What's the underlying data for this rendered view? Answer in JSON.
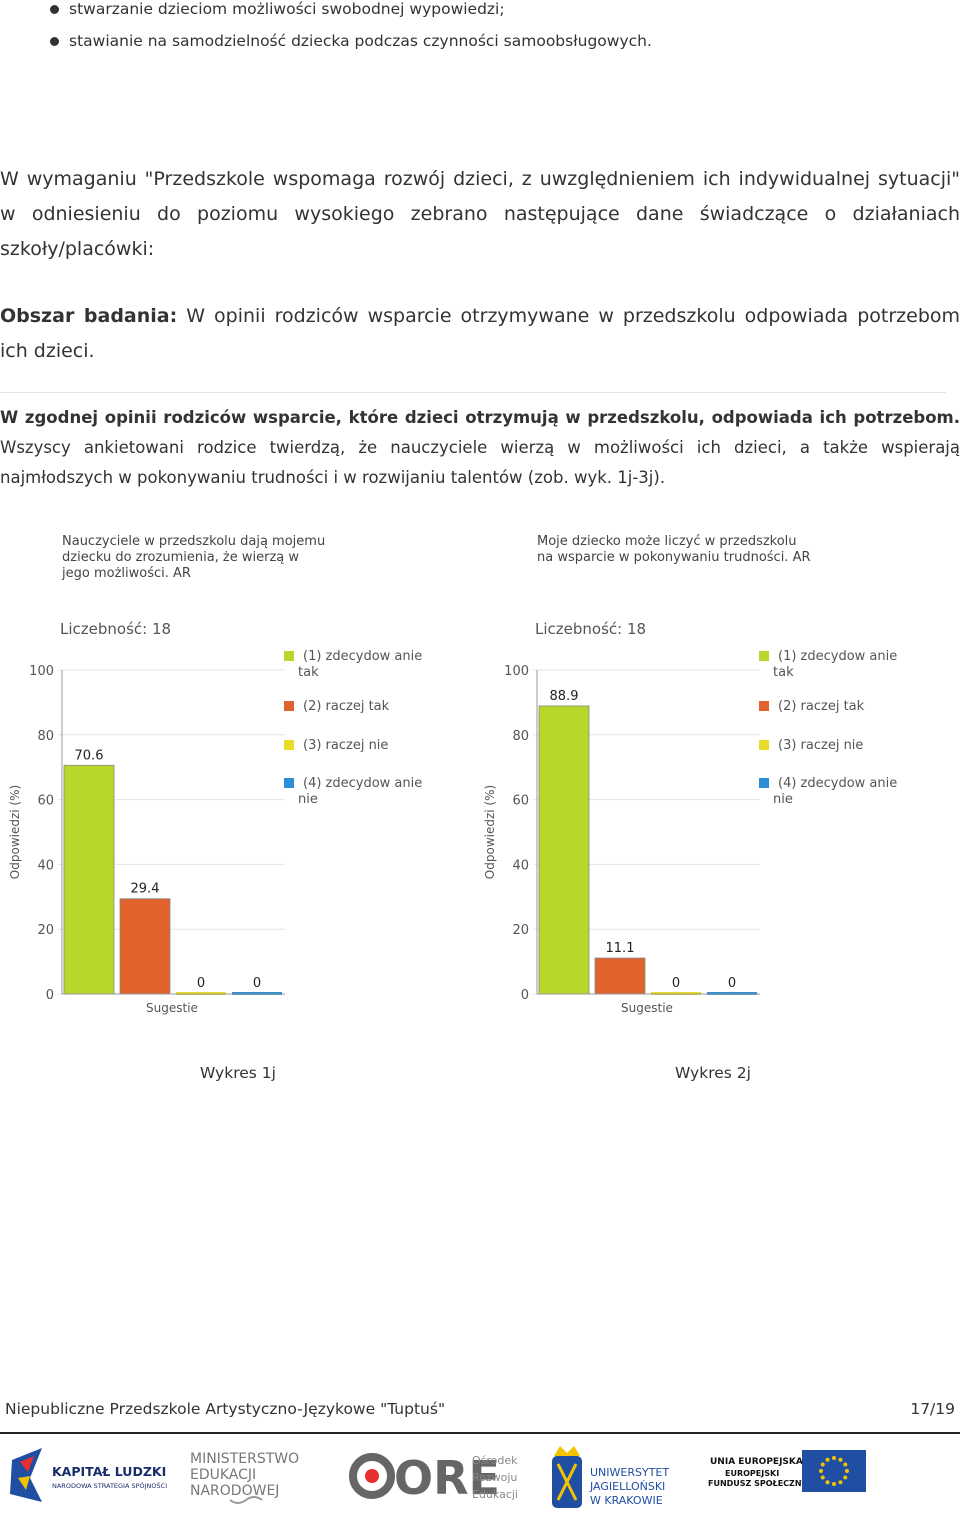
{
  "bullets": [
    "stwarzanie dzieciom możliwości swobodnej wypowiedzi;",
    "stawianie na samodzielność dziecka podczas czynności samoobsługowych."
  ],
  "intro_paragraph": "W wymaganiu \"Przedszkole wspomaga rozwój dzieci, z uwzględnieniem ich indywidualnej sytuacji\" w odniesieniu do poziomu wysokiego zebrano następujące dane świadczące o działaniach szkoły/placówki:",
  "area": {
    "label": "Obszar badania:",
    "text": "W opinii rodziców wsparcie otrzymywane w przedszkolu odpowiada potrzebom ich dzieci."
  },
  "finding": {
    "bold": "W zgodnej opinii rodziców wsparcie, które dzieci otrzymują w przedszkolu, odpowiada ich potrzebom.",
    "text": "Wszyscy ankietowani rodzice twierdzą, że nauczyciele wierzą w możliwości ich dzieci, a także wspierają najmłodszych w pokonywaniu trudności i w rozwijaniu talentów (zob. wyk. 1j-3j)."
  },
  "chart_data": [
    {
      "type": "bar",
      "title": "Nauczyciele w przedszkolu dają mojemu dziecku do zrozumienia, że wierzą w jego możliwości. AR",
      "title_lines": [
        "Nauczyciele w przedszkolu dają mojemu",
        "dziecku do  zrozumienia, że wierzą w",
        "jego możliwości. AR"
      ],
      "count_label": "Liczebność: 18",
      "ylabel": "Odpowiedzi (%)",
      "xlabel": "Sugestie",
      "ylim": [
        0,
        100
      ],
      "yticks": [
        "0",
        "20",
        "40",
        "60",
        "80",
        "100"
      ],
      "series": [
        {
          "name": "(1) zdecydowanie tak",
          "legend_lines": [
            "(1) zdecydow anie",
            "tak"
          ],
          "value": 70.6,
          "label": "70.6",
          "color": "#b5d82b"
        },
        {
          "name": "(2) raczej tak",
          "legend_lines": [
            "(2) raczej tak"
          ],
          "value": 29.4,
          "label": "29.4",
          "color": "#e0622c"
        },
        {
          "name": "(3) raczej nie",
          "legend_lines": [
            "(3) raczej nie"
          ],
          "value": 0,
          "label": "0",
          "color": "#e8dc2a"
        },
        {
          "name": "(4) zdecydowanie nie",
          "legend_lines": [
            "(4) zdecydow anie",
            "nie"
          ],
          "value": 0,
          "label": "0",
          "color": "#2b8fd6"
        }
      ],
      "caption": "Wykres 1j"
    },
    {
      "type": "bar",
      "title": "Moje dziecko może liczyć w przedszkolu na wsparcie w pokonywaniu trudności. AR",
      "title_lines": [
        "Moje dziecko może liczyć w przedszkolu",
        "na wsparcie w pokonywaniu trudności. AR"
      ],
      "count_label": "Liczebność: 18",
      "ylabel": "Odpowiedzi (%)",
      "xlabel": "Sugestie",
      "ylim": [
        0,
        100
      ],
      "yticks": [
        "0",
        "20",
        "40",
        "60",
        "80",
        "100"
      ],
      "series": [
        {
          "name": "(1) zdecydowanie tak",
          "legend_lines": [
            "(1) zdecydow anie",
            "tak"
          ],
          "value": 88.9,
          "label": "88.9",
          "color": "#b5d82b"
        },
        {
          "name": "(2) raczej tak",
          "legend_lines": [
            "(2) raczej tak"
          ],
          "value": 11.1,
          "label": "11.1",
          "color": "#e0622c"
        },
        {
          "name": "(3) raczej nie",
          "legend_lines": [
            "(3) raczej nie"
          ],
          "value": 0,
          "label": "0",
          "color": "#e8dc2a"
        },
        {
          "name": "(4) zdecydowanie nie",
          "legend_lines": [
            "(4) zdecydow anie",
            "nie"
          ],
          "value": 0,
          "label": "0",
          "color": "#2b8fd6"
        }
      ],
      "caption": "Wykres 2j"
    }
  ],
  "footer": {
    "school": "Niepubliczne Przedszkole Artystyczno-Językowe \"Tuptuś\"",
    "page": "17/19"
  },
  "logos": {
    "kapital": {
      "line1": "KAPITAŁ LUDZKI",
      "line2": "NARODOWA STRATEGIA SPÓJNOŚCI"
    },
    "men": {
      "line1": "MINISTERSTWO",
      "line2": "EDUKACJI",
      "line3": "NARODOWEJ"
    },
    "ore": {
      "mark": "ORE",
      "line1": "Ośrodek",
      "line2": "Rozwoju",
      "line3": "Edukacji"
    },
    "uj": {
      "line1": "UNIWERSYTET",
      "line2": "JAGIELLOŃSKI",
      "line3": "W KRAKOWIE"
    },
    "ue": {
      "line1": "UNIA EUROPEJSKA",
      "line2": "EUROPEJSKI",
      "line3": "FUNDUSZ SPOŁECZNY"
    }
  }
}
